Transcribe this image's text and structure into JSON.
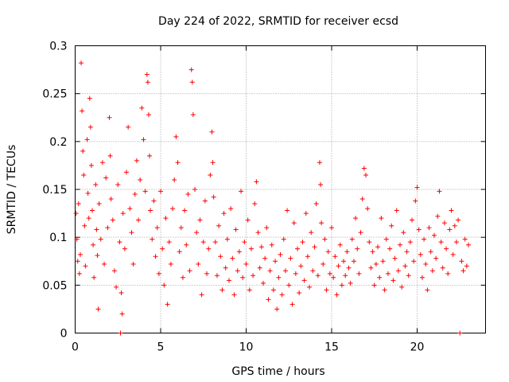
{
  "chart_data": {
    "type": "scatter",
    "title": "Day 224 of 2022, SRMTID for receiver ecsd",
    "xlabel": "GPS time / hours",
    "ylabel": "SRMTID / TECUs",
    "xlim": [
      0,
      24
    ],
    "ylim": [
      0,
      0.3
    ],
    "xticks": [
      0,
      5,
      10,
      15,
      20
    ],
    "xtick_labels": [
      "0",
      "5",
      "10",
      "15",
      "20"
    ],
    "yticks": [
      0,
      0.05,
      0.1,
      0.15,
      0.2,
      0.25,
      0.3
    ],
    "ytick_labels": [
      "0",
      "0.05",
      "0.1",
      "0.15",
      "0.2",
      "0.25",
      "0.3"
    ],
    "grid": true,
    "marker": "plus",
    "series_color": "#ff0000",
    "series": [
      {
        "name": "SRMTID",
        "points": [
          [
            0.05,
            0.125
          ],
          [
            0.1,
            0.098
          ],
          [
            0.15,
            0.075
          ],
          [
            0.2,
            0.135
          ],
          [
            0.25,
            0.062
          ],
          [
            0.3,
            0.082
          ],
          [
            0.35,
            0.282
          ],
          [
            0.4,
            0.232
          ],
          [
            0.45,
            0.19
          ],
          [
            0.5,
            0.165
          ],
          [
            0.55,
            0.112
          ],
          [
            0.6,
            0.07
          ],
          [
            0.7,
            0.202
          ],
          [
            0.75,
            0.146
          ],
          [
            0.8,
            0.12
          ],
          [
            0.85,
            0.245
          ],
          [
            0.9,
            0.215
          ],
          [
            0.95,
            0.175
          ],
          [
            1.0,
            0.128
          ],
          [
            1.05,
            0.092
          ],
          [
            1.1,
            0.058
          ],
          [
            1.2,
            0.155
          ],
          [
            1.25,
            0.108
          ],
          [
            1.3,
            0.081
          ],
          [
            1.35,
            0.025
          ],
          [
            1.4,
            0.135
          ],
          [
            1.5,
            0.098
          ],
          [
            1.6,
            0.178
          ],
          [
            1.7,
            0.072
          ],
          [
            1.8,
            0.162
          ],
          [
            1.9,
            0.11
          ],
          [
            2.0,
            0.225
          ],
          [
            2.05,
            0.185
          ],
          [
            2.1,
            0.14
          ],
          [
            2.2,
            0.118
          ],
          [
            2.3,
            0.065
          ],
          [
            2.4,
            0.048
          ],
          [
            2.5,
            0.155
          ],
          [
            2.6,
            0.095
          ],
          [
            2.65,
            0.0
          ],
          [
            2.7,
            0.042
          ],
          [
            2.75,
            0.02
          ],
          [
            2.8,
            0.125
          ],
          [
            2.9,
            0.088
          ],
          [
            3.0,
            0.168
          ],
          [
            3.1,
            0.215
          ],
          [
            3.2,
            0.13
          ],
          [
            3.3,
            0.105
          ],
          [
            3.4,
            0.072
          ],
          [
            3.5,
            0.145
          ],
          [
            3.6,
            0.18
          ],
          [
            3.7,
            0.118
          ],
          [
            3.8,
            0.16
          ],
          [
            3.9,
            0.235
          ],
          [
            4.0,
            0.202
          ],
          [
            4.1,
            0.148
          ],
          [
            4.2,
            0.27
          ],
          [
            4.25,
            0.262
          ],
          [
            4.3,
            0.228
          ],
          [
            4.35,
            0.185
          ],
          [
            4.4,
            0.128
          ],
          [
            4.5,
            0.098
          ],
          [
            4.6,
            0.138
          ],
          [
            4.7,
            0.08
          ],
          [
            4.8,
            0.11
          ],
          [
            4.9,
            0.062
          ],
          [
            5.0,
            0.148
          ],
          [
            5.1,
            0.088
          ],
          [
            5.2,
            0.05
          ],
          [
            5.3,
            0.12
          ],
          [
            5.4,
            0.03
          ],
          [
            5.5,
            0.095
          ],
          [
            5.6,
            0.072
          ],
          [
            5.7,
            0.13
          ],
          [
            5.8,
            0.16
          ],
          [
            5.9,
            0.205
          ],
          [
            6.0,
            0.178
          ],
          [
            6.1,
            0.085
          ],
          [
            6.2,
            0.11
          ],
          [
            6.3,
            0.058
          ],
          [
            6.4,
            0.128
          ],
          [
            6.5,
            0.092
          ],
          [
            6.6,
            0.145
          ],
          [
            6.7,
            0.065
          ],
          [
            6.8,
            0.275
          ],
          [
            6.85,
            0.262
          ],
          [
            6.9,
            0.228
          ],
          [
            7.0,
            0.15
          ],
          [
            7.1,
            0.105
          ],
          [
            7.2,
            0.072
          ],
          [
            7.3,
            0.118
          ],
          [
            7.4,
            0.04
          ],
          [
            7.5,
            0.095
          ],
          [
            7.6,
            0.138
          ],
          [
            7.7,
            0.062
          ],
          [
            7.8,
            0.088
          ],
          [
            7.9,
            0.165
          ],
          [
            8.0,
            0.21
          ],
          [
            8.05,
            0.178
          ],
          [
            8.1,
            0.142
          ],
          [
            8.2,
            0.095
          ],
          [
            8.3,
            0.06
          ],
          [
            8.4,
            0.112
          ],
          [
            8.5,
            0.08
          ],
          [
            8.6,
            0.045
          ],
          [
            8.7,
            0.125
          ],
          [
            8.8,
            0.068
          ],
          [
            8.9,
            0.098
          ],
          [
            9.0,
            0.055
          ],
          [
            9.1,
            0.13
          ],
          [
            9.2,
            0.078
          ],
          [
            9.3,
            0.04
          ],
          [
            9.4,
            0.108
          ],
          [
            9.5,
            0.065
          ],
          [
            9.6,
            0.085
          ],
          [
            9.7,
            0.148
          ],
          [
            9.8,
            0.058
          ],
          [
            9.9,
            0.095
          ],
          [
            10.0,
            0.072
          ],
          [
            10.1,
            0.118
          ],
          [
            10.2,
            0.045
          ],
          [
            10.3,
            0.088
          ],
          [
            10.4,
            0.06
          ],
          [
            10.5,
            0.135
          ],
          [
            10.6,
            0.158
          ],
          [
            10.7,
            0.105
          ],
          [
            10.8,
            0.068
          ],
          [
            10.9,
            0.09
          ],
          [
            11.0,
            0.052
          ],
          [
            11.1,
            0.078
          ],
          [
            11.2,
            0.11
          ],
          [
            11.3,
            0.035
          ],
          [
            11.4,
            0.065
          ],
          [
            11.5,
            0.092
          ],
          [
            11.6,
            0.045
          ],
          [
            11.7,
            0.075
          ],
          [
            11.8,
            0.025
          ],
          [
            11.9,
            0.058
          ],
          [
            12.0,
            0.082
          ],
          [
            12.1,
            0.04
          ],
          [
            12.2,
            0.098
          ],
          [
            12.3,
            0.065
          ],
          [
            12.4,
            0.128
          ],
          [
            12.5,
            0.05
          ],
          [
            12.6,
            0.078
          ],
          [
            12.7,
            0.03
          ],
          [
            12.8,
            0.115
          ],
          [
            12.9,
            0.062
          ],
          [
            13.0,
            0.088
          ],
          [
            13.1,
            0.042
          ],
          [
            13.2,
            0.07
          ],
          [
            13.3,
            0.095
          ],
          [
            13.4,
            0.055
          ],
          [
            13.5,
            0.125
          ],
          [
            13.6,
            0.08
          ],
          [
            13.7,
            0.048
          ],
          [
            13.8,
            0.105
          ],
          [
            13.9,
            0.065
          ],
          [
            14.0,
            0.09
          ],
          [
            14.1,
            0.135
          ],
          [
            14.2,
            0.06
          ],
          [
            14.3,
            0.178
          ],
          [
            14.35,
            0.155
          ],
          [
            14.4,
            0.115
          ],
          [
            14.5,
            0.072
          ],
          [
            14.6,
            0.098
          ],
          [
            14.7,
            0.045
          ],
          [
            14.8,
            0.085
          ],
          [
            14.9,
            0.062
          ],
          [
            15.0,
            0.11
          ],
          [
            15.1,
            0.058
          ],
          [
            15.2,
            0.08
          ],
          [
            15.3,
            0.04
          ],
          [
            15.4,
            0.07
          ],
          [
            15.5,
            0.092
          ],
          [
            15.6,
            0.05
          ],
          [
            15.7,
            0.075
          ],
          [
            15.8,
            0.06
          ],
          [
            15.9,
            0.085
          ],
          [
            16.0,
            0.068
          ],
          [
            16.1,
            0.052
          ],
          [
            16.2,
            0.098
          ],
          [
            16.3,
            0.075
          ],
          [
            16.4,
            0.12
          ],
          [
            16.5,
            0.088
          ],
          [
            16.6,
            0.062
          ],
          [
            16.7,
            0.105
          ],
          [
            16.8,
            0.14
          ],
          [
            16.9,
            0.172
          ],
          [
            17.0,
            0.165
          ],
          [
            17.1,
            0.13
          ],
          [
            17.2,
            0.095
          ],
          [
            17.3,
            0.068
          ],
          [
            17.4,
            0.085
          ],
          [
            17.5,
            0.05
          ],
          [
            17.6,
            0.072
          ],
          [
            17.7,
            0.09
          ],
          [
            17.8,
            0.058
          ],
          [
            17.9,
            0.12
          ],
          [
            18.0,
            0.075
          ],
          [
            18.1,
            0.045
          ],
          [
            18.2,
            0.098
          ],
          [
            18.3,
            0.062
          ],
          [
            18.4,
            0.088
          ],
          [
            18.5,
            0.112
          ],
          [
            18.6,
            0.055
          ],
          [
            18.7,
            0.078
          ],
          [
            18.8,
            0.128
          ],
          [
            18.9,
            0.065
          ],
          [
            19.0,
            0.092
          ],
          [
            19.1,
            0.048
          ],
          [
            19.2,
            0.105
          ],
          [
            19.3,
            0.07
          ],
          [
            19.4,
            0.085
          ],
          [
            19.5,
            0.06
          ],
          [
            19.6,
            0.095
          ],
          [
            19.7,
            0.118
          ],
          [
            19.8,
            0.075
          ],
          [
            19.9,
            0.138
          ],
          [
            20.0,
            0.152
          ],
          [
            20.1,
            0.108
          ],
          [
            20.2,
            0.082
          ],
          [
            20.3,
            0.058
          ],
          [
            20.4,
            0.098
          ],
          [
            20.5,
            0.072
          ],
          [
            20.6,
            0.045
          ],
          [
            20.7,
            0.11
          ],
          [
            20.8,
            0.085
          ],
          [
            20.9,
            0.065
          ],
          [
            21.0,
            0.102
          ],
          [
            21.1,
            0.078
          ],
          [
            21.2,
            0.122
          ],
          [
            21.3,
            0.148
          ],
          [
            21.4,
            0.095
          ],
          [
            21.5,
            0.068
          ],
          [
            21.6,
            0.115
          ],
          [
            21.7,
            0.088
          ],
          [
            21.8,
            0.062
          ],
          [
            21.9,
            0.108
          ],
          [
            22.0,
            0.128
          ],
          [
            22.1,
            0.082
          ],
          [
            22.2,
            0.112
          ],
          [
            22.3,
            0.095
          ],
          [
            22.4,
            0.118
          ],
          [
            22.5,
            0.0
          ],
          [
            22.6,
            0.075
          ],
          [
            22.7,
            0.065
          ],
          [
            22.8,
            0.098
          ],
          [
            22.9,
            0.07
          ],
          [
            23.0,
            0.092
          ]
        ]
      }
    ]
  }
}
